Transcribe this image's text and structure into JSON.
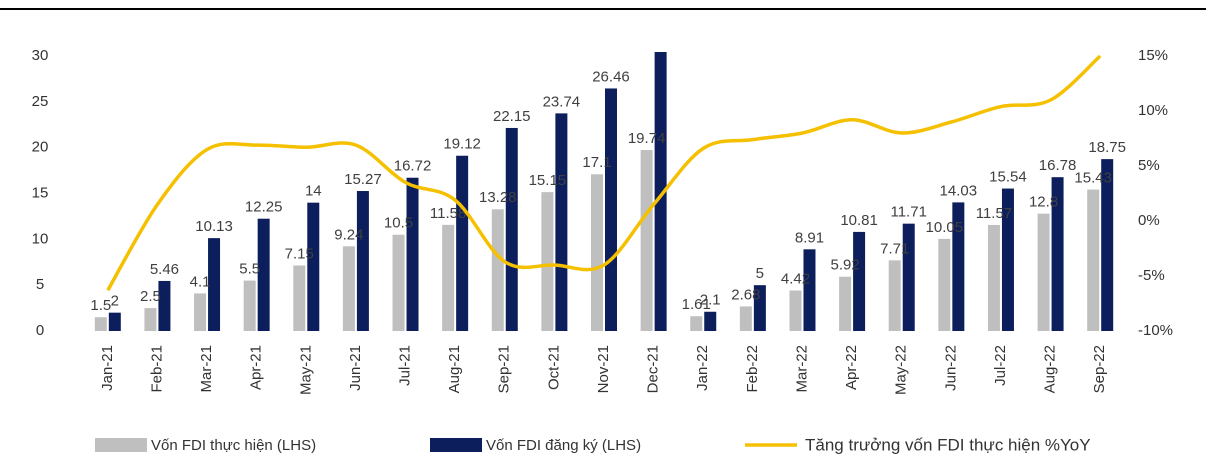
{
  "chart_data": {
    "type": "bar_line",
    "categories": [
      "Jan-21",
      "Feb-21",
      "Mar-21",
      "Apr-21",
      "May-21",
      "Jun-21",
      "Jul-21",
      "Aug-21",
      "Sep-21",
      "Oct-21",
      "Nov-21",
      "Dec-21",
      "Jan-22",
      "Feb-22",
      "Mar-22",
      "Apr-22",
      "May-22",
      "Jun-22",
      "Jul-22",
      "Aug-22",
      "Sep-22"
    ],
    "series": [
      {
        "name": "Vốn FDI thực hiện (LHS)",
        "color": "#bfbfbf",
        "values": [
          1.5,
          2.5,
          4.1,
          5.5,
          7.15,
          9.24,
          10.5,
          11.58,
          13.28,
          15.15,
          17.1,
          19.74,
          1.61,
          2.68,
          4.42,
          5.92,
          7.71,
          10.05,
          11.57,
          12.8,
          15.43
        ]
      },
      {
        "name": "Vốn FDI đăng ký (LHS)",
        "color": "#0c1f5c",
        "values": [
          2,
          5.46,
          10.13,
          12.25,
          14,
          15.27,
          16.72,
          19.12,
          22.15,
          23.74,
          26.46,
          31.15,
          2.1,
          5,
          8.91,
          10.81,
          11.71,
          14.03,
          15.54,
          16.78,
          18.75
        ]
      },
      {
        "name": "Tăng trưởng vốn FDI thực hiện %YoY",
        "color": "#f5c000",
        "axis": "y2",
        "values": [
          -6.3,
          1.5,
          6.5,
          6.9,
          6.7,
          6.9,
          3.5,
          1.9,
          -3.7,
          -4,
          -4,
          1.5,
          6.6,
          7.4,
          8,
          9.2,
          8,
          9,
          10.4,
          11,
          15
        ]
      }
    ],
    "ylim": [
      0,
      30
    ],
    "yticks": [
      0,
      5,
      10,
      15,
      20,
      25,
      30
    ],
    "y2lim": [
      -10,
      15
    ],
    "y2ticks": [
      {
        "value": -10,
        "label": "-10%"
      },
      {
        "value": -5,
        "label": "-5%"
      },
      {
        "value": 0,
        "label": "0%"
      },
      {
        "value": 5,
        "label": "5%"
      },
      {
        "value": 10,
        "label": "10%"
      },
      {
        "value": 15,
        "label": "15%"
      }
    ]
  }
}
